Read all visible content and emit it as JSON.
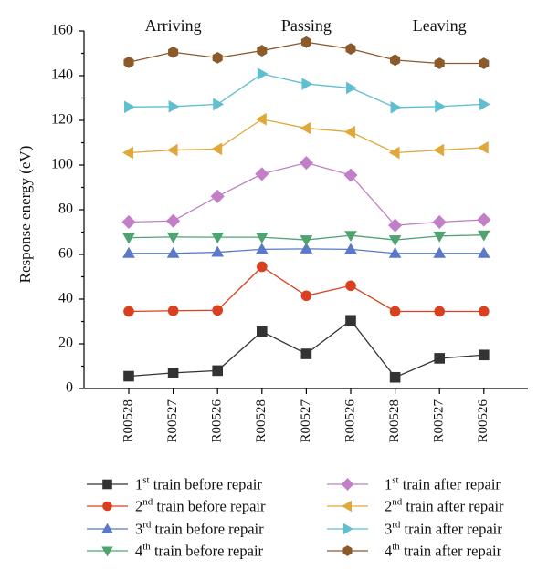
{
  "chart_data": {
    "type": "line",
    "ylabel": "Response energy (eV)",
    "ylim": [
      0,
      160
    ],
    "yticks": [
      0,
      20,
      40,
      60,
      80,
      100,
      120,
      140,
      160
    ],
    "group_labels": [
      "Arriving",
      "Passing",
      "Leaving"
    ],
    "categories": [
      "R00528",
      "R00527",
      "R00526",
      "R00528",
      "R00527",
      "R00526",
      "R00528",
      "R00527",
      "R00526"
    ],
    "grid": false,
    "legend_placement": "bottom",
    "series": [
      {
        "ord": "1",
        "suffix": "st",
        "rest": " train before repair",
        "color": "#333333",
        "marker": "square",
        "values": [
          5.5,
          7,
          8,
          25.5,
          15.5,
          30.5,
          5,
          13.5,
          15
        ]
      },
      {
        "ord": "2",
        "suffix": "nd",
        "rest": " train before repair",
        "color": "#d9401f",
        "marker": "circle",
        "values": [
          34.5,
          34.8,
          35,
          54.5,
          41.5,
          46,
          34.5,
          34.5,
          34.5
        ]
      },
      {
        "ord": "3",
        "suffix": "rd",
        "rest": " train before repair",
        "color": "#5a79c9",
        "marker": "triangle-up",
        "values": [
          60.5,
          60.5,
          61,
          62.3,
          62.5,
          62.3,
          60.5,
          60.5,
          60.5
        ]
      },
      {
        "ord": "4",
        "suffix": "th",
        "rest": " train before repair",
        "color": "#4fa370",
        "marker": "triangle-down",
        "values": [
          67.5,
          67.8,
          67.7,
          67.7,
          66.5,
          68.5,
          66.5,
          68.2,
          68.7
        ]
      },
      {
        "ord": "1",
        "suffix": "st",
        "rest": " train after repair",
        "color": "#c27fc8",
        "marker": "diamond",
        "values": [
          74.5,
          75,
          86,
          96,
          101,
          95.5,
          73,
          74.5,
          75.5
        ]
      },
      {
        "ord": "2",
        "suffix": "nd",
        "rest": " train after repair",
        "color": "#e0a83a",
        "marker": "triangle-left",
        "values": [
          105.5,
          106.7,
          107.2,
          120.5,
          116.5,
          114.8,
          105.5,
          106.7,
          107.8
        ]
      },
      {
        "ord": "3",
        "suffix": "rd",
        "rest": " train after repair",
        "color": "#5fbfd0",
        "marker": "triangle-right",
        "values": [
          126,
          126.2,
          127.2,
          140.8,
          136.3,
          134.5,
          125.8,
          126.2,
          127.2
        ]
      },
      {
        "ord": "4",
        "suffix": "th",
        "rest": " train after repair",
        "color": "#8b5a2b",
        "marker": "hexagon",
        "values": [
          146,
          150.5,
          148,
          151.2,
          155,
          152,
          147,
          145.5,
          145.5
        ]
      }
    ]
  }
}
